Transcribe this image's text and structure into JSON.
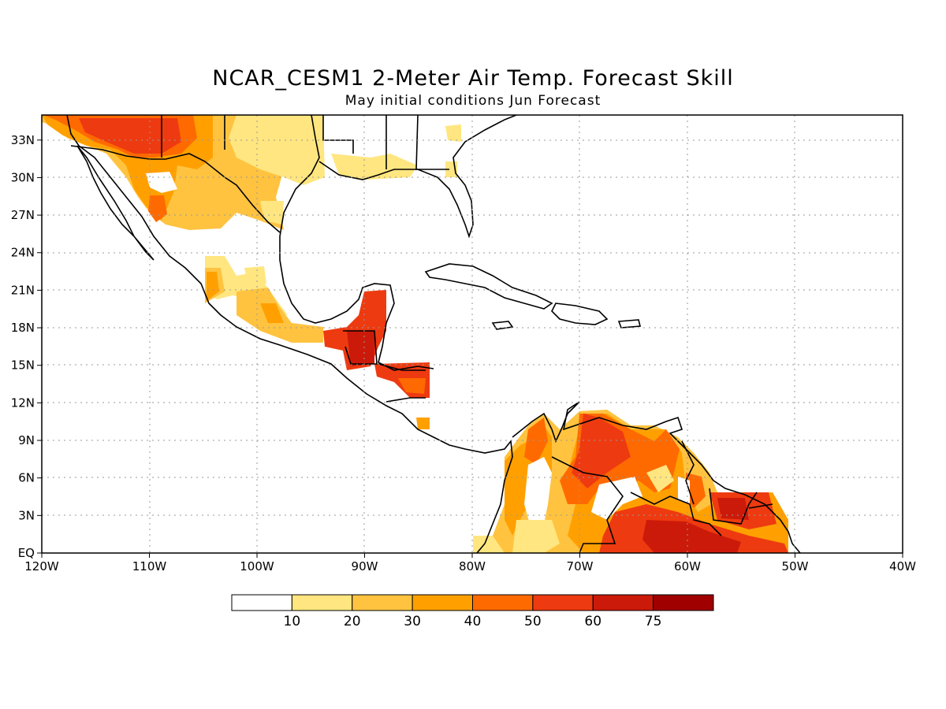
{
  "title": "NCAR_CESM1 2-Meter Air Temp. Forecast Skill",
  "subtitle": "May initial conditions  Jun Forecast",
  "map": {
    "lon_range": [
      -120,
      -40
    ],
    "lat_range": [
      0,
      35
    ],
    "x_ticks": [
      "120W",
      "110W",
      "100W",
      "90W",
      "80W",
      "70W",
      "60W",
      "50W",
      "40W"
    ],
    "y_ticks": [
      "EQ",
      "3N",
      "6N",
      "9N",
      "12N",
      "15N",
      "18N",
      "21N",
      "24N",
      "27N",
      "30N",
      "33N"
    ],
    "grid": "dotted"
  },
  "colorbar": {
    "labels": [
      "10",
      "20",
      "30",
      "40",
      "50",
      "60",
      "75"
    ],
    "colors": [
      "#ffffff",
      "#ffe680",
      "#ffc340",
      "#ffa000",
      "#ff6a00",
      "#ee3a10",
      "#cc1a0a",
      "#a00000"
    ]
  }
}
